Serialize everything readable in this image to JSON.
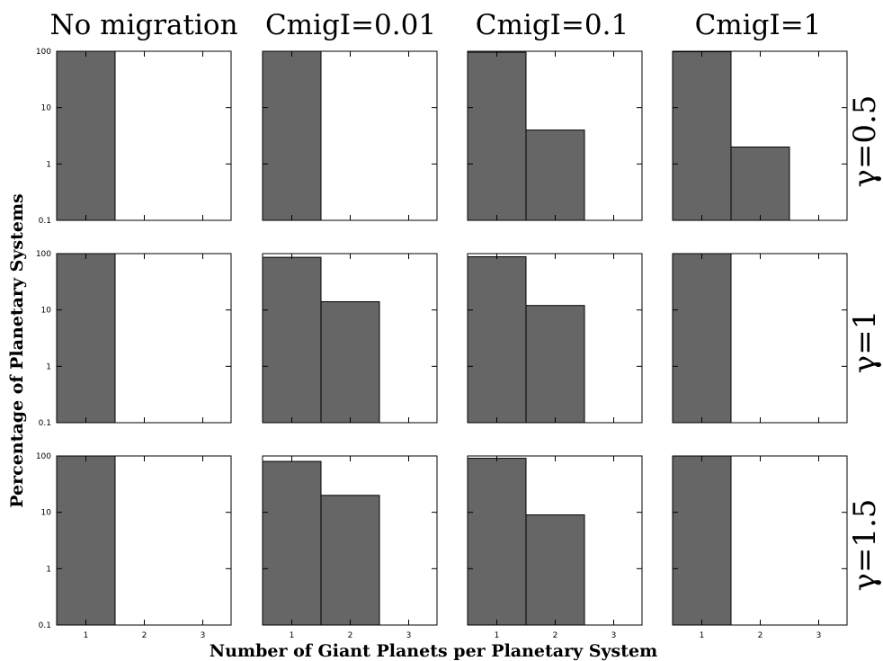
{
  "chart_data": {
    "type": "bar",
    "xlabel": "Number of Giant Planets per Planetary System",
    "ylabel": "Percentage of Planetary Systems",
    "yscale": "log",
    "ylim": [
      0.1,
      100
    ],
    "yticks": [
      "100",
      "10",
      "1",
      "0.1"
    ],
    "categories": [
      "1",
      "2",
      "3"
    ],
    "columns": [
      "No migration",
      "CmigI=0.01",
      "CmigI=0.1",
      "CmigI=1"
    ],
    "rows": [
      "γ=0.5",
      "γ=1",
      "γ=1.5"
    ],
    "bar_color": "#666666",
    "panels": [
      [
        {
          "values": [
            100,
            0,
            0
          ]
        },
        {
          "values": [
            100,
            0,
            0
          ]
        },
        {
          "values": [
            96,
            4,
            0
          ]
        },
        {
          "values": [
            98,
            2,
            0
          ]
        }
      ],
      [
        {
          "values": [
            100,
            0,
            0
          ]
        },
        {
          "values": [
            86,
            14,
            0
          ]
        },
        {
          "values": [
            88,
            12,
            0
          ]
        },
        {
          "values": [
            100,
            0,
            0
          ]
        }
      ],
      [
        {
          "values": [
            100,
            0,
            0
          ]
        },
        {
          "values": [
            80,
            20,
            0
          ]
        },
        {
          "values": [
            91,
            9,
            0
          ]
        },
        {
          "values": [
            100,
            0,
            0
          ]
        }
      ]
    ]
  }
}
